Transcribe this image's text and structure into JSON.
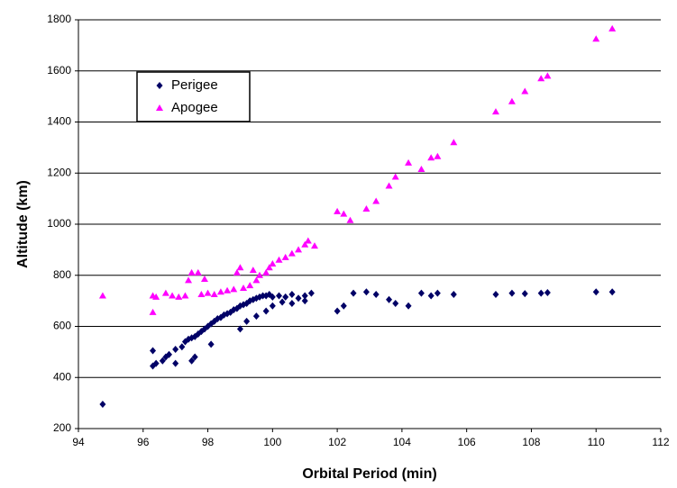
{
  "chart_data": {
    "type": "scatter",
    "x_label": "Orbital Period  (min)",
    "y_label": "Altitude  (km)",
    "xlim": [
      94,
      112
    ],
    "xticks": [
      94,
      96,
      98,
      100,
      102,
      104,
      106,
      108,
      110,
      112
    ],
    "ylim": [
      200,
      1800
    ],
    "yticks": [
      200,
      400,
      600,
      800,
      1000,
      1200,
      1400,
      1600,
      1800
    ],
    "grid": true,
    "legend": "upper left",
    "series": [
      {
        "name": "Perigee",
        "color": "#000066",
        "marker": "diamond",
        "x": [
          94.75,
          96.3,
          96.3,
          96.4,
          96.6,
          96.7,
          96.8,
          97.0,
          97.0,
          97.2,
          97.3,
          97.4,
          97.5,
          97.6,
          97.7,
          97.5,
          97.6,
          97.8,
          97.9,
          98.0,
          98.1,
          98.2,
          98.3,
          98.4,
          98.5,
          98.6,
          98.7,
          98.8,
          98.9,
          99.0,
          99.1,
          99.2,
          99.3,
          99.4,
          99.5,
          99.6,
          99.7,
          99.8,
          99.9,
          100.0,
          100.2,
          100.4,
          100.6,
          100.8,
          101.0,
          101.2,
          99.0,
          99.2,
          99.5,
          99.8,
          100.0,
          100.3,
          100.6,
          101.0,
          102.0,
          102.2,
          102.5,
          102.9,
          103.2,
          103.6,
          103.8,
          104.2,
          104.6,
          104.9,
          105.1,
          105.6,
          106.9,
          107.4,
          107.8,
          108.3,
          108.5,
          110.0,
          110.5,
          98.1
        ],
        "values": [
          295,
          505,
          445,
          455,
          465,
          480,
          490,
          455,
          510,
          520,
          540,
          550,
          555,
          560,
          570,
          465,
          480,
          580,
          590,
          600,
          610,
          620,
          630,
          635,
          645,
          650,
          655,
          665,
          670,
          680,
          685,
          690,
          700,
          705,
          710,
          715,
          720,
          720,
          725,
          715,
          720,
          715,
          725,
          710,
          720,
          730,
          590,
          620,
          640,
          660,
          680,
          695,
          690,
          700,
          660,
          680,
          730,
          735,
          725,
          705,
          690,
          680,
          730,
          720,
          730,
          725,
          725,
          730,
          728,
          730,
          732,
          735,
          735,
          530
        ]
      },
      {
        "name": "Apogee",
        "color": "#ff00ff",
        "marker": "triangle",
        "x": [
          94.75,
          96.3,
          96.3,
          96.4,
          96.7,
          96.9,
          97.1,
          97.3,
          97.4,
          97.5,
          97.7,
          97.9,
          97.8,
          98.0,
          98.2,
          98.4,
          98.6,
          98.8,
          98.9,
          99.0,
          99.1,
          99.3,
          99.4,
          99.5,
          99.6,
          99.8,
          99.9,
          100.0,
          100.2,
          100.4,
          100.6,
          100.8,
          101.0,
          101.1,
          101.3,
          102.0,
          102.2,
          102.4,
          102.9,
          103.2,
          103.6,
          103.8,
          104.2,
          104.6,
          104.9,
          105.1,
          105.6,
          106.9,
          107.4,
          107.8,
          108.3,
          108.5,
          110.0,
          110.5
        ],
        "values": [
          720,
          655,
          720,
          715,
          730,
          720,
          715,
          720,
          780,
          810,
          810,
          785,
          725,
          730,
          725,
          735,
          740,
          745,
          810,
          830,
          750,
          760,
          820,
          780,
          800,
          810,
          830,
          845,
          860,
          870,
          885,
          900,
          920,
          935,
          915,
          1050,
          1040,
          1015,
          1060,
          1090,
          1150,
          1185,
          1240,
          1215,
          1260,
          1265,
          1320,
          1440,
          1480,
          1520,
          1570,
          1580,
          1725,
          1765
        ]
      }
    ]
  }
}
